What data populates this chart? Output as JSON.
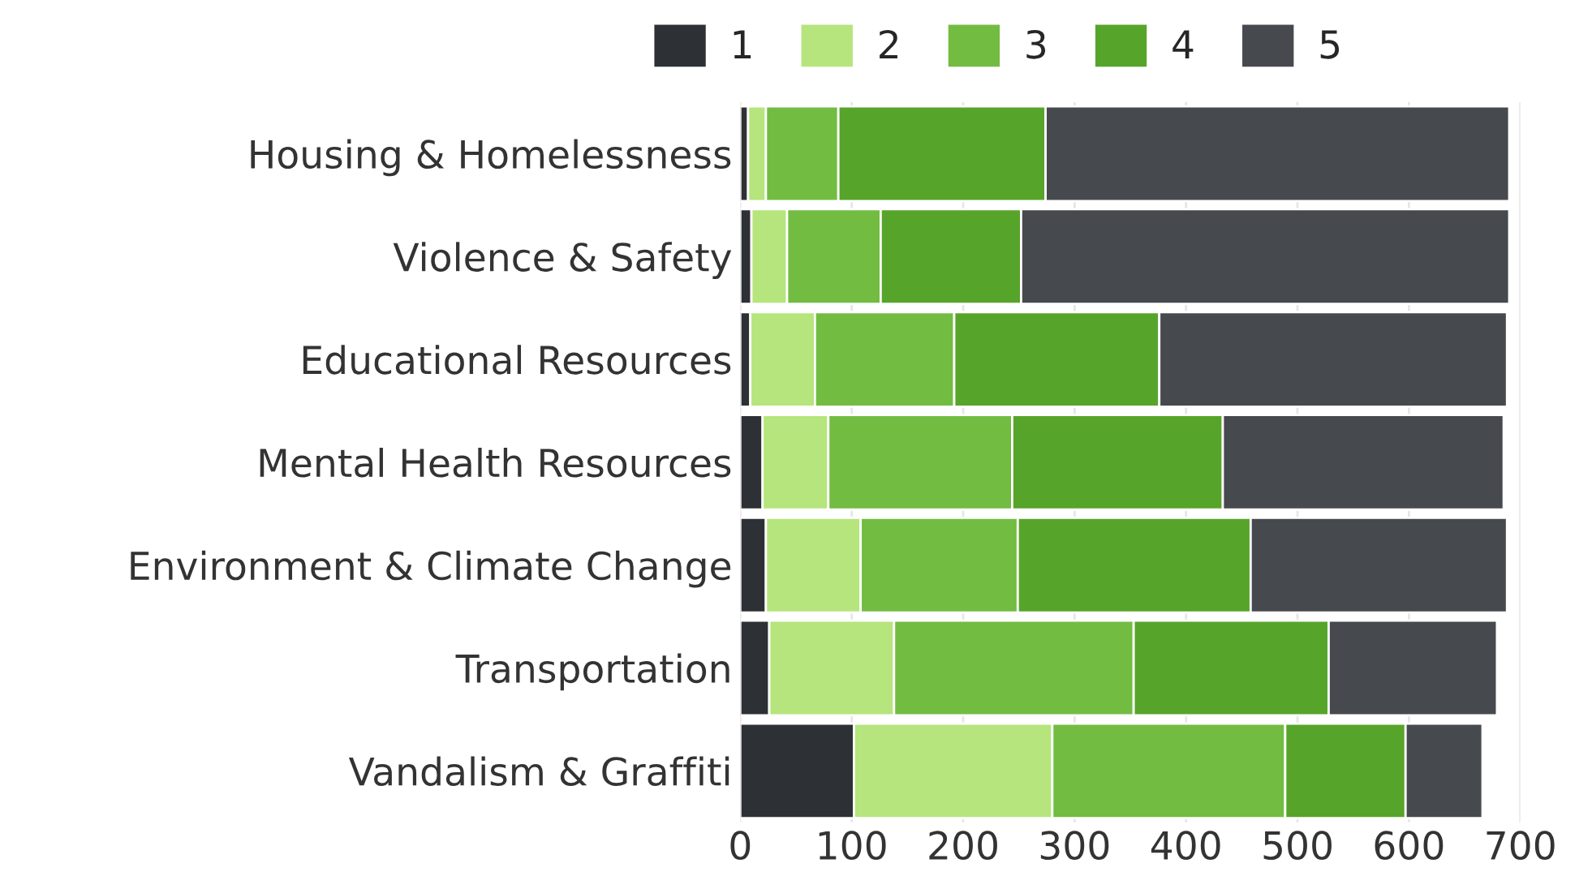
{
  "chart_data": {
    "type": "bar",
    "orientation": "horizontal",
    "stacked": true,
    "categories": [
      "Housing & Homelessness",
      "Violence & Safety",
      "Educational Resources",
      "Mental Health Resources",
      "Environment & Climate Change",
      "Transportation",
      "Vandalism & Graffiti"
    ],
    "series": [
      {
        "name": "1",
        "color": "#2d3135",
        "values": [
          7,
          10,
          9,
          20,
          23,
          26,
          102
        ]
      },
      {
        "name": "2",
        "color": "#b5e57c",
        "values": [
          16,
          32,
          58,
          59,
          85,
          112,
          178
        ]
      },
      {
        "name": "3",
        "color": "#72bc42",
        "values": [
          65,
          84,
          125,
          165,
          141,
          215,
          209
        ]
      },
      {
        "name": "4",
        "color": "#57a42a",
        "values": [
          186,
          126,
          184,
          189,
          209,
          175,
          108
        ]
      },
      {
        "name": "5",
        "color": "#46494d",
        "values": [
          416,
          438,
          312,
          252,
          230,
          151,
          69
        ]
      }
    ],
    "xlim": [
      0,
      700
    ],
    "xticks": [
      0,
      100,
      200,
      300,
      400,
      500,
      600,
      700
    ],
    "grid": "x",
    "legend": "top"
  }
}
